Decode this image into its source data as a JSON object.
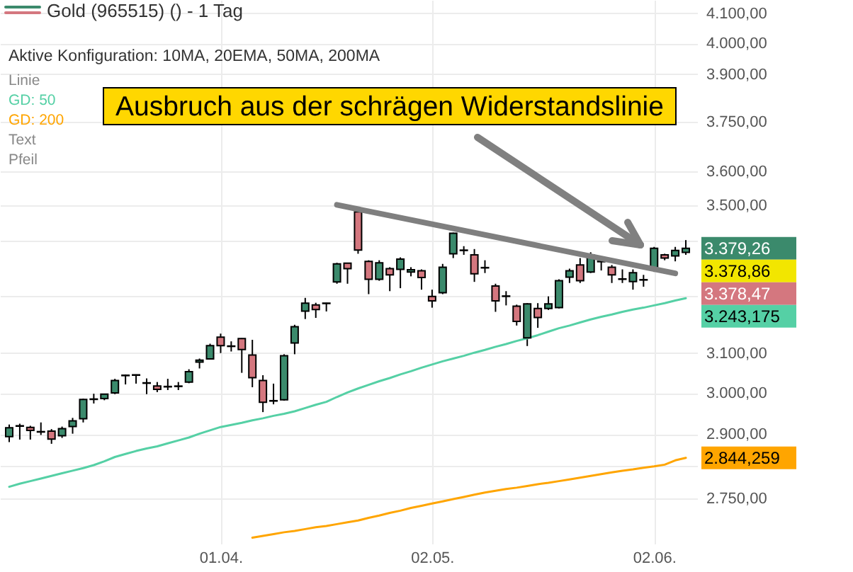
{
  "chart_data": {
    "type": "candlestick",
    "title": "Gold (965515) () - 1 Tag",
    "categories": [
      null,
      null,
      null,
      null,
      null,
      null,
      null,
      null,
      null,
      null,
      null,
      null,
      null,
      null,
      null,
      null,
      null,
      null,
      null,
      null,
      "01.04.",
      null,
      null,
      null,
      null,
      null,
      null,
      null,
      null,
      null,
      null,
      null,
      null,
      null,
      null,
      null,
      null,
      null,
      null,
      null,
      "02.05.",
      null,
      null,
      null,
      null,
      null,
      null,
      null,
      null,
      null,
      null,
      null,
      null,
      null,
      null,
      null,
      null,
      null,
      null,
      null,
      null,
      "02.06.",
      null,
      null,
      null
    ],
    "ohlc": [
      [
        2894,
        2923,
        2881,
        2915
      ],
      [
        2919,
        2925,
        2887,
        2920
      ],
      [
        2916,
        2920,
        2887,
        2909
      ],
      [
        2906,
        2928,
        2898,
        2905
      ],
      [
        2907,
        2912,
        2877,
        2888
      ],
      [
        2896,
        2918,
        2891,
        2913
      ],
      [
        2918,
        2939,
        2901,
        2932
      ],
      [
        2937,
        2986,
        2928,
        2984
      ],
      [
        2984,
        2998,
        2974,
        2985
      ],
      [
        2986,
        2998,
        2982,
        2997
      ],
      [
        3000,
        3035,
        2997,
        3031
      ],
      [
        3043,
        3046,
        3021,
        3044
      ],
      [
        3045,
        3046,
        3023,
        3044
      ],
      [
        3025,
        3036,
        2997,
        3024
      ],
      [
        3017,
        3027,
        3002,
        3009
      ],
      [
        3015,
        3035,
        3007,
        3016
      ],
      [
        3016,
        3027,
        3007,
        3017
      ],
      [
        3027,
        3059,
        3024,
        3053
      ],
      [
        3077,
        3086,
        3061,
        3082
      ],
      [
        3085,
        3124,
        3084,
        3119
      ],
      [
        3141,
        3150,
        3100,
        3119
      ],
      [
        3117,
        3130,
        3104,
        3118
      ],
      [
        3137,
        3138,
        3050,
        3109
      ],
      [
        3095,
        3134,
        3014,
        3038
      ],
      [
        3031,
        3044,
        2953,
        2977
      ],
      [
        2980,
        3023,
        2972,
        2981
      ],
      [
        2983,
        3097,
        2981,
        3093
      ],
      [
        3126,
        3173,
        3097,
        3168
      ],
      [
        3209,
        3244,
        3188,
        3230
      ],
      [
        3225,
        3231,
        3191,
        3213
      ],
      [
        3230,
        3231,
        3208,
        3229
      ],
      [
        3287,
        3339,
        3282,
        3336
      ],
      [
        3338,
        3339,
        3282,
        3323
      ],
      [
        3482,
        3491,
        3364,
        3374
      ],
      [
        3343,
        3346,
        3254,
        3294
      ],
      [
        3294,
        3346,
        3290,
        3339
      ],
      [
        3323,
        3327,
        3262,
        3306
      ],
      [
        3321,
        3354,
        3270,
        3349
      ],
      [
        3314,
        3327,
        3302,
        3320
      ],
      [
        3317,
        3321,
        3266,
        3299
      ],
      [
        3248,
        3266,
        3218,
        3236
      ],
      [
        3258,
        3336,
        3254,
        3327
      ],
      [
        3364,
        3423,
        3352,
        3421
      ],
      [
        3374,
        3385,
        3361,
        3373
      ],
      [
        3361,
        3377,
        3287,
        3309
      ],
      [
        3325,
        3346,
        3311,
        3326
      ],
      [
        3276,
        3282,
        3207,
        3236
      ],
      [
        3249,
        3262,
        3224,
        3248
      ],
      [
        3222,
        3226,
        3171,
        3182
      ],
      [
        3139,
        3230,
        3118,
        3228
      ],
      [
        3216,
        3230,
        3165,
        3192
      ],
      [
        3216,
        3248,
        3212,
        3228
      ],
      [
        3218,
        3294,
        3216,
        3290
      ],
      [
        3300,
        3323,
        3284,
        3317
      ],
      [
        3333,
        3352,
        3284,
        3290
      ],
      [
        3314,
        3368,
        3311,
        3361
      ],
      [
        3342,
        3352,
        3318,
        3343
      ],
      [
        3327,
        3333,
        3284,
        3306
      ],
      [
        3295,
        3321,
        3284,
        3294
      ],
      [
        3288,
        3321,
        3266,
        3312
      ],
      [
        3292,
        3306,
        3274,
        3293
      ],
      [
        3318,
        3383,
        3314,
        3379
      ],
      [
        3361,
        3364,
        3346,
        3352
      ],
      [
        3358,
        3383,
        3343,
        3373
      ],
      [
        3368,
        3402,
        3361,
        3379
      ]
    ],
    "series": [
      {
        "name": "Linie",
        "type": "line",
        "color": "#7f7f7f",
        "values": [
          null,
          null,
          null,
          null,
          null,
          null,
          null,
          null,
          null,
          null,
          null,
          null,
          null,
          null,
          null,
          null,
          null,
          null,
          null,
          null,
          null,
          null,
          null,
          null,
          null,
          null,
          null,
          null,
          null,
          null,
          null,
          3502,
          null,
          null,
          null,
          null,
          null,
          null,
          null,
          null,
          null,
          null,
          null,
          null,
          null,
          null,
          null,
          null,
          null,
          null,
          null,
          null,
          null,
          null,
          null,
          null,
          null,
          null,
          null,
          null,
          null,
          null,
          null,
          3310,
          null
        ]
      },
      {
        "name": "GD: 50",
        "type": "line",
        "color": "#55d0a5",
        "values": [
          2777,
          2784,
          2790,
          2796,
          2802,
          2808,
          2814,
          2820,
          2827,
          2836,
          2846,
          2853,
          2860,
          2866,
          2871,
          2878,
          2885,
          2892,
          2901,
          2909,
          2917,
          2922,
          2927,
          2933,
          2938,
          2944,
          2949,
          2955,
          2963,
          2971,
          2978,
          2990,
          3001,
          3011,
          3020,
          3029,
          3037,
          3046,
          3054,
          3063,
          3071,
          3079,
          3086,
          3093,
          3101,
          3108,
          3116,
          3123,
          3131,
          3138,
          3146,
          3155,
          3164,
          3171,
          3179,
          3187,
          3194,
          3200,
          3207,
          3213,
          3218,
          3224,
          3230,
          3237,
          3243
        ]
      },
      {
        "name": "GD: 200",
        "type": "line",
        "color": "#ffa500",
        "values": [
          null,
          null,
          null,
          null,
          null,
          null,
          null,
          null,
          null,
          null,
          null,
          null,
          null,
          null,
          null,
          null,
          null,
          null,
          null,
          null,
          null,
          null,
          null,
          2663,
          2667,
          2671,
          2675,
          2678,
          2682,
          2686,
          2689,
          2693,
          2697,
          2701,
          2707,
          2712,
          2718,
          2723,
          2729,
          2734,
          2739,
          2744,
          2749,
          2754,
          2759,
          2764,
          2768,
          2772,
          2775,
          2779,
          2783,
          2786,
          2790,
          2794,
          2798,
          2802,
          2806,
          2810,
          2814,
          2817,
          2821,
          2824,
          2828,
          2838,
          2844
        ]
      }
    ],
    "ylim": [
      2650,
      4145
    ],
    "log": true,
    "yticks": [
      {
        "value": 4100,
        "label": "4.100,00"
      },
      {
        "value": 4000,
        "label": "4.000,00"
      },
      {
        "value": 3900,
        "label": "3.900,00"
      },
      {
        "value": 3750,
        "label": "3.750,00"
      },
      {
        "value": 3600,
        "label": "3.600,00"
      },
      {
        "value": 3500,
        "label": "3.500,00"
      },
      {
        "value": 3400,
        "label": null
      },
      {
        "value": 3250,
        "label": null
      },
      {
        "value": 3100,
        "label": "3.100,00"
      },
      {
        "value": 3000,
        "label": "3.000,00"
      },
      {
        "value": 2900,
        "label": "2.900,00"
      },
      {
        "value": 2825,
        "label": null
      },
      {
        "value": 2750,
        "label": "2.750,00"
      }
    ],
    "grid": true,
    "legend": "top left",
    "annotations": [
      "Aktive Konfiguration: 10MA, 20EMA, 50MA, 200MA",
      "Text",
      "Pfeil",
      "Ausbruch aus der schrägen Widerstandslinie",
      "3.379,26",
      "3.378,86",
      "3.378,47",
      "3.243,175",
      "2.844,259"
    ]
  }
}
